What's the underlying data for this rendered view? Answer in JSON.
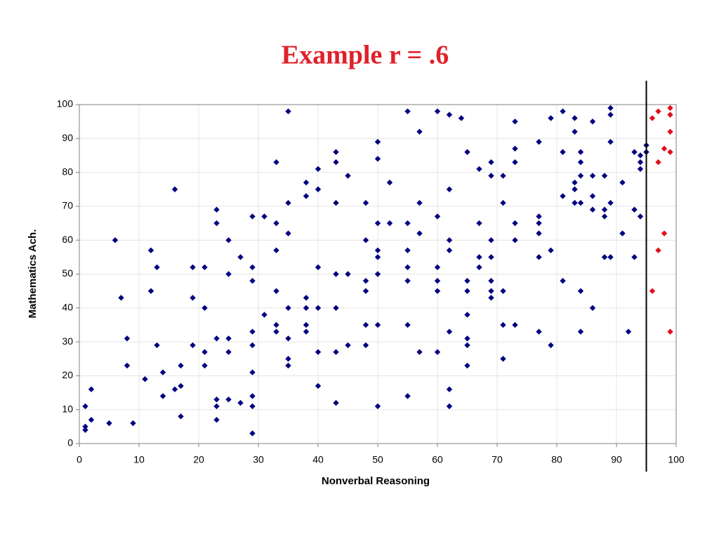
{
  "chart_data": {
    "type": "scatter",
    "title": "Example r = .6",
    "xlabel": "Nonverbal Reasoning",
    "ylabel": "Mathematics Ach.",
    "xlim": [
      0,
      100
    ],
    "ylim": [
      0,
      100
    ],
    "xticks": [
      0,
      10,
      20,
      30,
      40,
      50,
      60,
      70,
      80,
      90,
      100
    ],
    "yticks": [
      0,
      10,
      20,
      30,
      40,
      50,
      60,
      70,
      80,
      90,
      100
    ],
    "grid": true,
    "vline": 95,
    "series": [
      {
        "color": "#000080",
        "x": [
          1,
          1,
          1,
          2,
          2,
          5,
          6,
          7,
          8,
          8,
          9,
          11,
          12,
          12,
          13,
          13,
          14,
          14,
          16,
          16,
          17,
          17,
          17,
          19,
          19,
          19,
          21,
          21,
          21,
          21,
          23,
          23,
          23,
          23,
          23,
          23,
          25,
          25,
          25,
          25,
          25,
          27,
          27,
          29,
          29,
          29,
          29,
          29,
          29,
          29,
          29,
          29,
          31,
          31,
          33,
          33,
          33,
          33,
          33,
          33,
          35,
          35,
          35,
          35,
          35,
          35,
          35,
          38,
          38,
          38,
          38,
          38,
          38,
          40,
          40,
          40,
          40,
          40,
          40,
          43,
          43,
          43,
          43,
          43,
          43,
          43,
          45,
          45,
          45,
          48,
          48,
          48,
          48,
          48,
          48,
          50,
          50,
          50,
          50,
          50,
          50,
          50,
          50,
          52,
          52,
          55,
          55,
          55,
          55,
          55,
          55,
          55,
          57,
          57,
          57,
          57,
          60,
          60,
          60,
          60,
          60,
          60,
          62,
          62,
          62,
          62,
          62,
          62,
          62,
          64,
          65,
          65,
          65,
          65,
          65,
          65,
          65,
          67,
          67,
          67,
          67,
          69,
          69,
          69,
          69,
          69,
          69,
          69,
          71,
          71,
          71,
          71,
          71,
          73,
          73,
          73,
          73,
          73,
          73,
          77,
          77,
          77,
          77,
          77,
          77,
          79,
          79,
          79,
          81,
          81,
          81,
          81,
          83,
          83,
          83,
          83,
          83,
          84,
          84,
          84,
          84,
          84,
          84,
          86,
          86,
          86,
          86,
          86,
          88,
          88,
          88,
          88,
          89,
          89,
          89,
          89,
          89,
          91,
          91,
          92,
          93,
          93,
          93,
          94,
          94,
          94,
          94,
          95,
          95
        ],
        "values": [
          11,
          5,
          4,
          7,
          16,
          6,
          60,
          43,
          31,
          23,
          6,
          19,
          57,
          45,
          52,
          29,
          21,
          14,
          75,
          16,
          17,
          23,
          8,
          52,
          43,
          29,
          52,
          40,
          27,
          23,
          69,
          65,
          31,
          13,
          11,
          7,
          60,
          50,
          31,
          27,
          13,
          55,
          12,
          67,
          52,
          48,
          33,
          29,
          21,
          14,
          11,
          3,
          67,
          38,
          83,
          65,
          57,
          45,
          35,
          33,
          98,
          71,
          62,
          40,
          31,
          25,
          23,
          77,
          73,
          43,
          40,
          35,
          33,
          81,
          75,
          52,
          40,
          27,
          17,
          86,
          83,
          71,
          50,
          40,
          27,
          12,
          79,
          50,
          29,
          71,
          60,
          48,
          45,
          35,
          29,
          89,
          84,
          65,
          57,
          55,
          50,
          35,
          11,
          77,
          65,
          98,
          65,
          57,
          52,
          48,
          35,
          14,
          92,
          71,
          62,
          27,
          98,
          67,
          52,
          48,
          45,
          27,
          97,
          75,
          60,
          57,
          33,
          16,
          11,
          96,
          86,
          48,
          45,
          38,
          31,
          29,
          23,
          81,
          65,
          55,
          52,
          83,
          79,
          60,
          55,
          48,
          45,
          43,
          79,
          71,
          45,
          35,
          25,
          95,
          87,
          83,
          65,
          60,
          35,
          89,
          67,
          65,
          62,
          55,
          33,
          96,
          57,
          29,
          98,
          86,
          73,
          48,
          96,
          92,
          77,
          75,
          71,
          86,
          83,
          79,
          71,
          45,
          33,
          95,
          79,
          73,
          69,
          40,
          79,
          69,
          67,
          55,
          99,
          97,
          89,
          71,
          55,
          77,
          62,
          33,
          86,
          69,
          55,
          85,
          83,
          81,
          67,
          88,
          86
        ]
      },
      {
        "color": "#e0101a",
        "x": [
          96,
          97,
          97,
          97,
          96,
          98,
          98,
          99,
          99,
          99,
          99,
          99
        ],
        "values": [
          96,
          98,
          83,
          57,
          45,
          87,
          62,
          99,
          97,
          92,
          86,
          33
        ]
      }
    ]
  }
}
